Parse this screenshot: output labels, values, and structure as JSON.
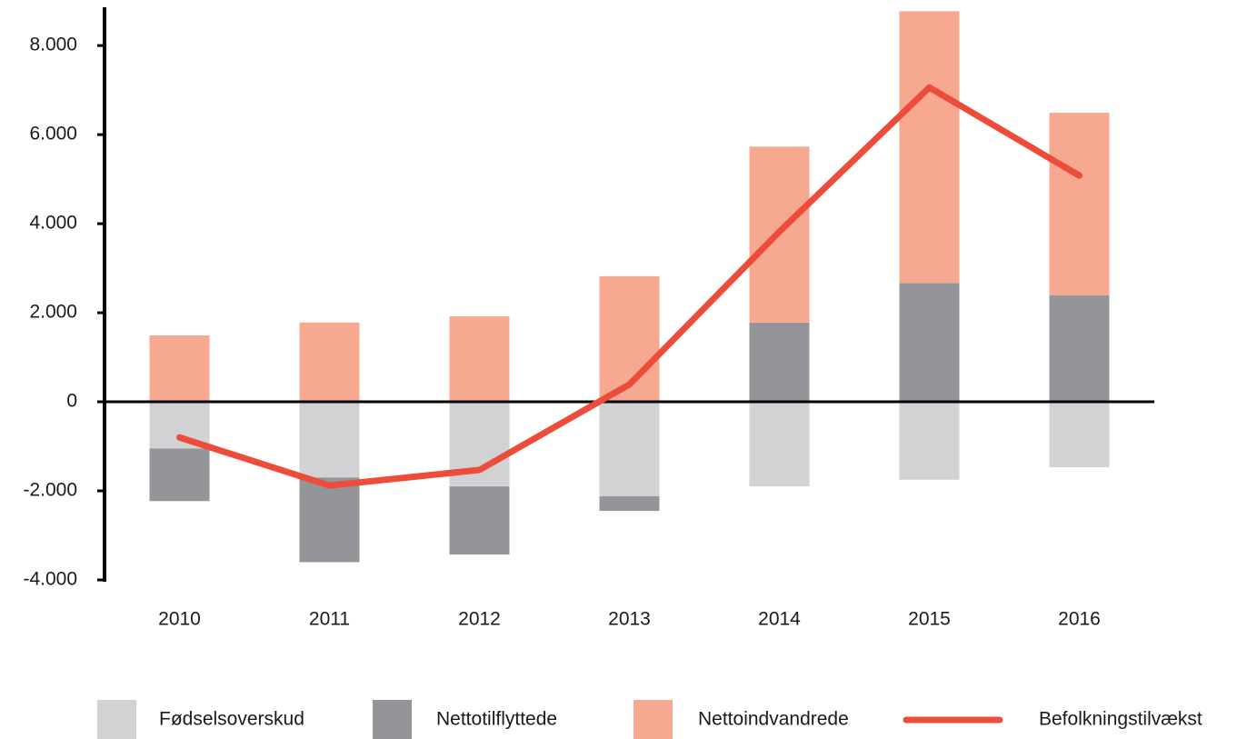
{
  "chart_data": {
    "type": "bar",
    "categories": [
      "2010",
      "2011",
      "2012",
      "2013",
      "2014",
      "2015",
      "2016"
    ],
    "series": [
      {
        "name": "Fødselsoverskud",
        "color": "#d1d2d4",
        "type": "bar",
        "values": [
          -1050,
          -1700,
          -1900,
          -2120,
          -1900,
          -1750,
          -1470
        ]
      },
      {
        "name": "Nettotilflyttede",
        "color": "#939598",
        "type": "bar",
        "values": [
          -1180,
          -1900,
          -1530,
          -330,
          1780,
          2670,
          2390
        ]
      },
      {
        "name": "Nettoindvandrede",
        "color": "#f7a890",
        "type": "bar",
        "values": [
          1490,
          1780,
          1920,
          2820,
          3950,
          6100,
          4100
        ]
      },
      {
        "name": "Befolkningstilvækst",
        "color": "#ee4c3a",
        "type": "line",
        "values": [
          -800,
          -1880,
          -1530,
          390,
          3820,
          7060,
          5080
        ]
      }
    ],
    "ylim": [
      -4000,
      8860
    ],
    "yticks": [
      {
        "value": -4000,
        "label": "-4.000"
      },
      {
        "value": -2000,
        "label": "-2.000"
      },
      0,
      {
        "value": 2000,
        "label": "2.000"
      },
      {
        "value": 4000,
        "label": "4.000"
      },
      {
        "value": 6000,
        "label": "6.000"
      },
      {
        "value": 8000,
        "label": "8.000"
      }
    ],
    "grid": false,
    "legend": "bottom"
  }
}
